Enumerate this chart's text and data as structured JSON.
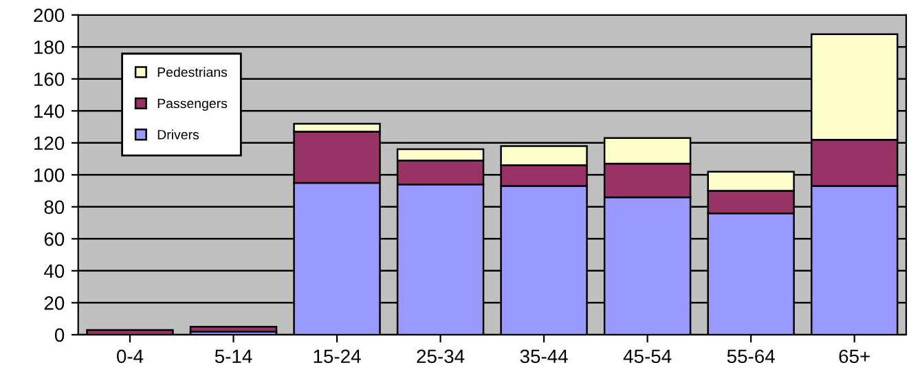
{
  "chart_data": {
    "type": "bar",
    "stacked": true,
    "categories": [
      "0-4",
      "5-14",
      "15-24",
      "25-34",
      "35-44",
      "45-54",
      "55-64",
      "65+"
    ],
    "series": [
      {
        "name": "Drivers",
        "color": "#9999ff",
        "values": [
          null,
          2,
          95,
          94,
          93,
          86,
          76,
          93
        ]
      },
      {
        "name": "Passengers",
        "color": "#993366",
        "values": [
          3,
          3,
          32,
          15,
          13,
          21,
          14,
          29
        ]
      },
      {
        "name": "Pedestrians",
        "color": "#ffffcc",
        "values": [
          null,
          null,
          5,
          7,
          12,
          16,
          12,
          66
        ]
      }
    ],
    "ylim": [
      0,
      200
    ],
    "yticks": [
      0,
      20,
      40,
      60,
      80,
      100,
      120,
      140,
      160,
      180,
      200
    ],
    "grid": "y",
    "legend": "top left"
  }
}
